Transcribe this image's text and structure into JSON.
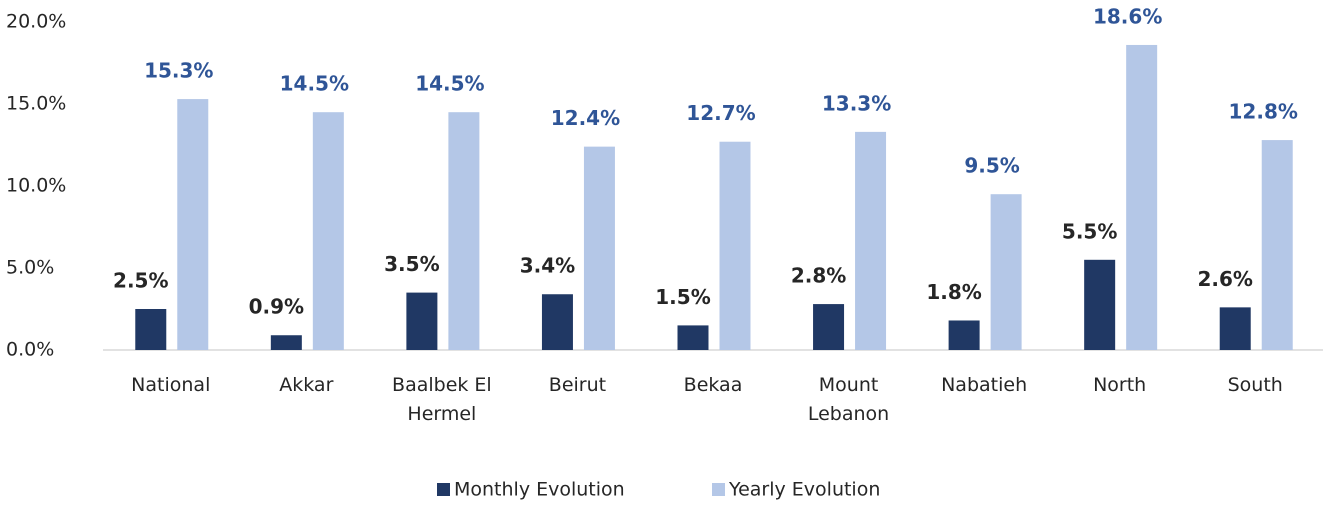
{
  "chart_data": {
    "type": "bar",
    "categories": [
      "National",
      "Akkar",
      "Baalbek El Hermel",
      "Beirut",
      "Bekaa",
      "Mount Lebanon",
      "Nabatieh",
      "North",
      "South"
    ],
    "series": [
      {
        "name": "Monthly Evolution",
        "color": "#203864",
        "label_color": "#262626",
        "values": [
          2.5,
          0.9,
          3.5,
          3.4,
          1.5,
          2.8,
          1.8,
          5.5,
          2.6
        ],
        "value_labels": [
          "2.5%",
          "0.9%",
          "3.5%",
          "3.4%",
          "1.5%",
          "2.8%",
          "1.8%",
          "5.5%",
          "2.6%"
        ]
      },
      {
        "name": "Yearly Evolution",
        "color": "#b4c7e7",
        "label_color": "#2f5597",
        "values": [
          15.3,
          14.5,
          14.5,
          12.4,
          12.7,
          13.3,
          9.5,
          18.6,
          12.8
        ],
        "value_labels": [
          "15.3%",
          "14.5%",
          "14.5%",
          "12.4%",
          "12.7%",
          "13.3%",
          "9.5%",
          "18.6%",
          "12.8%"
        ]
      }
    ],
    "ylim": [
      0,
      20
    ],
    "yticks": [
      {
        "value": 0,
        "label": "0.0%"
      },
      {
        "value": 5,
        "label": "5.0%"
      },
      {
        "value": 10,
        "label": "10.0%"
      },
      {
        "value": 15,
        "label": "15.0%"
      },
      {
        "value": 20,
        "label": "20.0%"
      }
    ],
    "grid": false,
    "legend": "bottom"
  }
}
